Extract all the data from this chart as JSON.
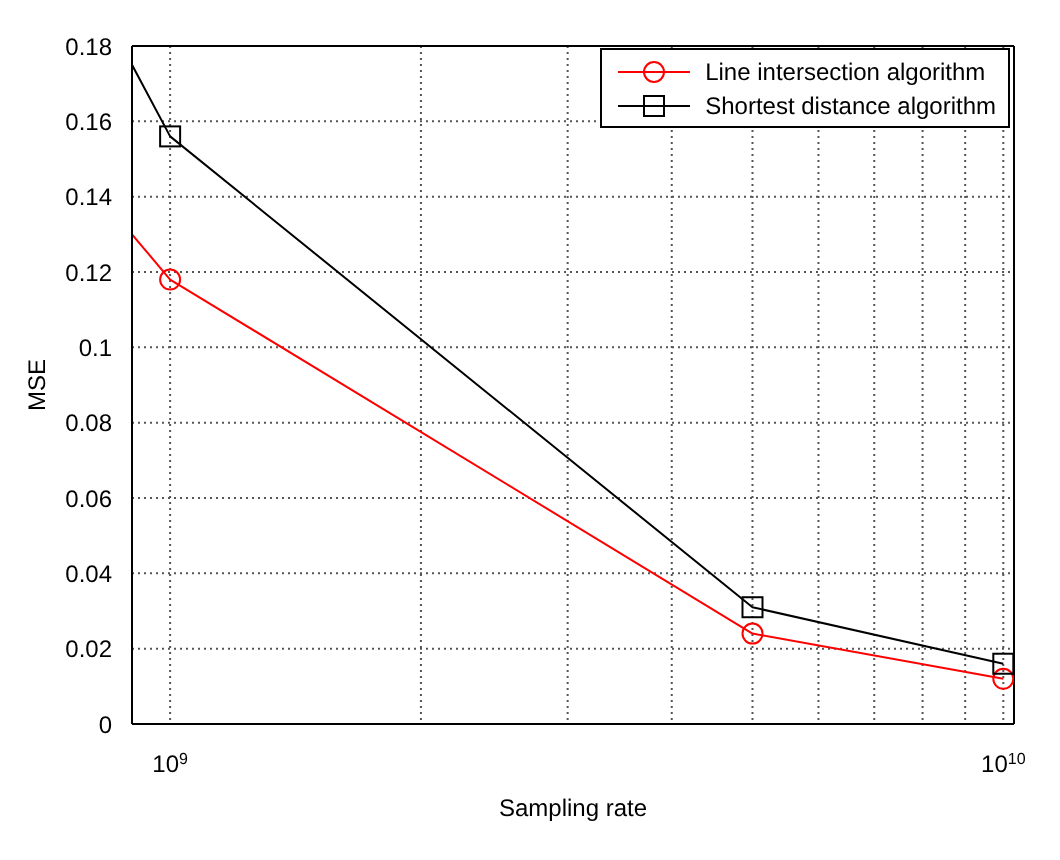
{
  "chart_data": {
    "type": "line",
    "xlabel": "Sampling rate",
    "ylabel": "MSE",
    "log": "x",
    "grid": true,
    "legend": "top right",
    "line_style": "solid",
    "xlim": [
      900000000,
      10300000000
    ],
    "xticks": [
      {
        "value": 1000000000,
        "label": "10$^{9}$"
      },
      {
        "value": 2000000000,
        "label": null
      },
      {
        "value": 3000000000,
        "label": null
      },
      {
        "value": 4000000000,
        "label": null
      },
      {
        "value": 5000000000,
        "label": null
      },
      {
        "value": 6000000000,
        "label": null
      },
      {
        "value": 7000000000,
        "label": null
      },
      {
        "value": 8000000000,
        "label": null
      },
      {
        "value": 9000000000,
        "label": null
      },
      {
        "value": 10000000000,
        "label": "10$^{10}$"
      }
    ],
    "ylim": [
      0,
      0.18
    ],
    "yticks": [
      0,
      0.02,
      0.04,
      0.06,
      0.08,
      0.1,
      0.12,
      0.14,
      0.16,
      0.18
    ],
    "x": [
      900000000,
      1000000000,
      5000000000,
      10000000000
    ],
    "series": [
      {
        "name": "Line intersection algorithm",
        "color": "#ff0000",
        "marker": "circle",
        "values": [
          0.13,
          0.118,
          0.024,
          0.012
        ]
      },
      {
        "name": "Shortest distance algorithm",
        "color": "#000000",
        "marker": "square",
        "values": [
          0.175,
          0.156,
          0.031,
          0.016
        ]
      }
    ]
  }
}
